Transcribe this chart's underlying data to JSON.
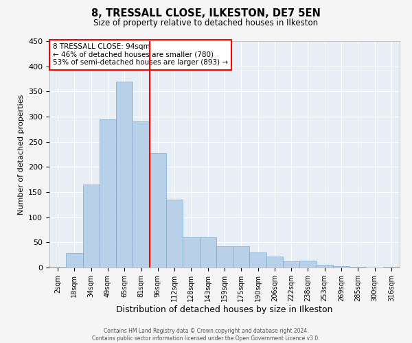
{
  "title": "8, TRESSALL CLOSE, ILKESTON, DE7 5EN",
  "subtitle": "Size of property relative to detached houses in Ilkeston",
  "xlabel": "Distribution of detached houses by size in Ilkeston",
  "ylabel": "Number of detached properties",
  "bar_labels": [
    "2sqm",
    "18sqm",
    "34sqm",
    "49sqm",
    "65sqm",
    "81sqm",
    "96sqm",
    "112sqm",
    "128sqm",
    "143sqm",
    "159sqm",
    "175sqm",
    "190sqm",
    "206sqm",
    "222sqm",
    "238sqm",
    "253sqm",
    "269sqm",
    "285sqm",
    "300sqm",
    "316sqm"
  ],
  "bar_heights": [
    2,
    28,
    165,
    295,
    370,
    290,
    228,
    135,
    60,
    60,
    42,
    42,
    30,
    22,
    12,
    14,
    5,
    3,
    1,
    0,
    2
  ],
  "bar_color": "#b8d0e8",
  "bar_edge_color": "#7aaad0",
  "vline_x": 5.5,
  "vline_color": "red",
  "annotation_title": "8 TRESSALL CLOSE: 94sqm",
  "annotation_line1": "← 46% of detached houses are smaller (780)",
  "annotation_line2": "53% of semi-detached houses are larger (893) →",
  "ylim": [
    0,
    450
  ],
  "yticks": [
    0,
    50,
    100,
    150,
    200,
    250,
    300,
    350,
    400,
    450
  ],
  "background_color": "#e8eef5",
  "grid_color": "#ffffff",
  "footer1": "Contains HM Land Registry data © Crown copyright and database right 2024.",
  "footer2": "Contains public sector information licensed under the Open Government Licence v3.0."
}
